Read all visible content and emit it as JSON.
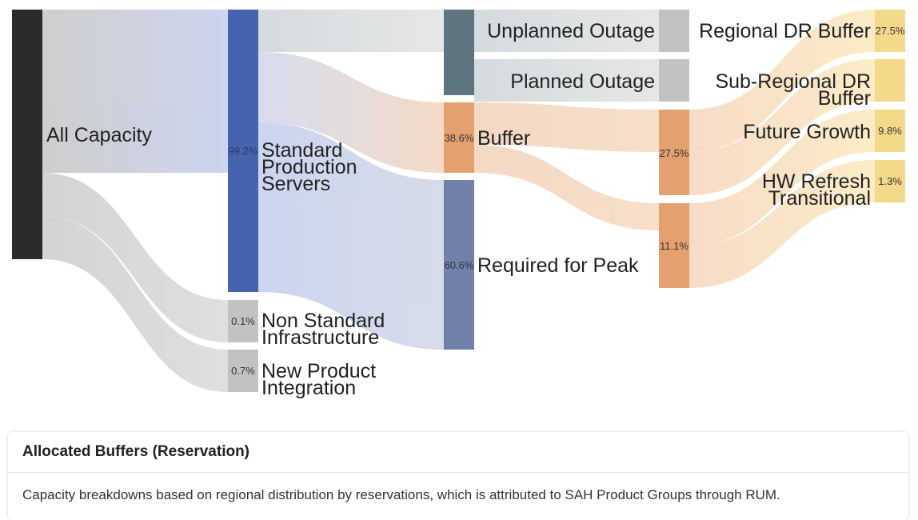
{
  "nodes": [
    {
      "id": "all_capacity",
      "label": "All Capacity",
      "color": "#2b2b2b"
    },
    {
      "id": "standard_production",
      "label": "Standard Production Servers",
      "pct": "99.2%",
      "color": "#4664ad"
    },
    {
      "id": "non_standard",
      "label": "Non Standard Infrastructure",
      "pct": "0.1%",
      "color": "#c2c2c2"
    },
    {
      "id": "new_product",
      "label": "New Product Integration",
      "pct": "0.7%",
      "color": "#c2c2c2"
    },
    {
      "id": "unplanned_outage",
      "label": "Unplanned Outage",
      "color": "#5e7580"
    },
    {
      "id": "planned_outage",
      "label": "Planned Outage",
      "color": "#5e7580"
    },
    {
      "id": "buffer",
      "label": "Buffer",
      "pct": "38.6%",
      "color": "#e5a06f"
    },
    {
      "id": "required_peak",
      "label": "Required for Peak",
      "pct": "60.6%",
      "color": "#7180a8"
    },
    {
      "id": "unplanned_box",
      "label": "",
      "color": "#c2c2c2"
    },
    {
      "id": "planned_box",
      "label": "",
      "color": "#c2c2c2"
    },
    {
      "id": "buffer_a",
      "label": "",
      "pct": "27.5%",
      "color": "#e5a06f"
    },
    {
      "id": "buffer_b",
      "label": "",
      "pct": "11.1%",
      "color": "#e5a06f"
    },
    {
      "id": "regional_dr",
      "label": "Regional DR Buffer",
      "pct": "27.5%",
      "color": "#f5d98a"
    },
    {
      "id": "sub_regional_dr",
      "label": "Sub-Regional DR Buffer",
      "color": "#f5d98a"
    },
    {
      "id": "future_growth",
      "label": "Future Growth",
      "pct": "9.8%",
      "color": "#f5d98a"
    },
    {
      "id": "hw_refresh",
      "label": "HW Refresh Transitional",
      "pct": "1.3%",
      "color": "#f5d98a"
    }
  ],
  "card": {
    "title": "Allocated Buffers (Reservation)",
    "description": "Capacity breakdowns based on regional distribution by reservations, which is attributed to SAH Product Groups through RUM."
  }
}
